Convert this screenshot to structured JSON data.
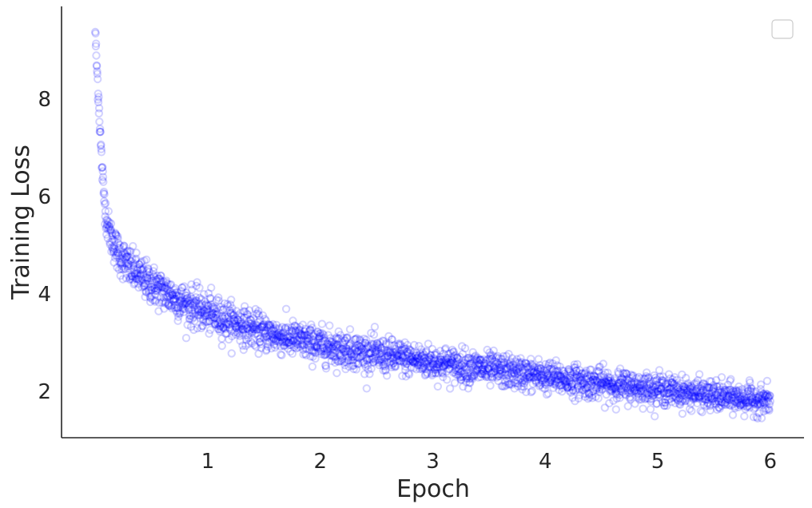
{
  "chart_data": {
    "type": "scatter",
    "title": "",
    "xlabel": "Epoch",
    "ylabel": "Training Loss",
    "xlim": [
      -0.3,
      6.3
    ],
    "ylim": [
      1.05,
      9.9
    ],
    "xticks": [
      1,
      2,
      3,
      4,
      5,
      6
    ],
    "yticks": [
      2,
      4,
      6,
      8
    ],
    "grid": false,
    "legend": {
      "placement": "top-right",
      "entries": []
    },
    "marker_color": "#0000ff",
    "marker_style": "hollow-circle",
    "marker_alpha": 0.18,
    "series": [
      {
        "trend_x": [
          0.0,
          0.01,
          0.03,
          0.05,
          0.07,
          0.1,
          0.15,
          0.2,
          0.3,
          0.4,
          0.6,
          0.8,
          1.0,
          1.5,
          2.0,
          2.5,
          3.0,
          3.5,
          4.0,
          4.5,
          5.0,
          5.5,
          6.0
        ],
        "trend_y": [
          9.4,
          8.8,
          8.0,
          7.0,
          6.2,
          5.5,
          5.1,
          4.85,
          4.55,
          4.35,
          4.05,
          3.8,
          3.6,
          3.2,
          2.95,
          2.75,
          2.6,
          2.45,
          2.3,
          2.15,
          2.05,
          1.9,
          1.8
        ],
        "spread": [
          0.08,
          0.12,
          0.15,
          0.15,
          0.15,
          0.16,
          0.18,
          0.2,
          0.2,
          0.2,
          0.2,
          0.2,
          0.2,
          0.18,
          0.18,
          0.18,
          0.17,
          0.17,
          0.16,
          0.16,
          0.15,
          0.15,
          0.14
        ],
        "n_points": 2600
      }
    ]
  }
}
